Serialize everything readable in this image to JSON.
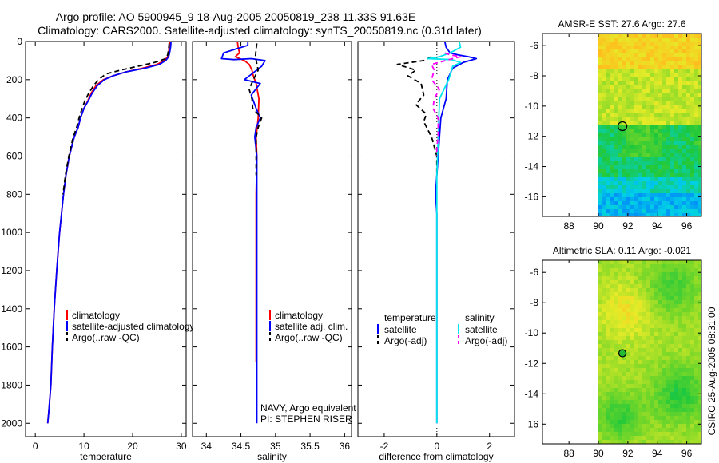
{
  "header": {
    "title_line1": "Argo profile: AO 5900945_9 18-Aug-2005 20050819_238 11.33S 91.63E",
    "title_line2": "Climatology: CARS2000. Satellite-adjusted climatology: synTS_20050819.nc (0.31d later)"
  },
  "side_caption": "CSIRO 25-Aug-2005 08:31:00",
  "colors": {
    "climatology": "#ff0000",
    "satellite": "#0000ff",
    "argo": "#000000",
    "sal_satellite": "#00e5ee",
    "sal_argo": "#ff00ff"
  },
  "chart_data": [
    {
      "type": "line",
      "panel": "temperature",
      "xlabel": "temperature",
      "xlim": [
        -2,
        31
      ],
      "ylim": [
        0,
        2070
      ],
      "xticks": [
        0,
        10,
        20,
        30
      ],
      "yticks": [
        0,
        200,
        400,
        600,
        800,
        1000,
        1200,
        1400,
        1600,
        1800,
        2000
      ],
      "y_reversed": true,
      "legend": [
        "climatology",
        "satellite-adjusted climatology",
        "Argo(..raw -QC)"
      ],
      "series": [
        {
          "name": "climatology",
          "color": "#ff0000",
          "style": "solid",
          "x": [
            27.6,
            27.5,
            27.4,
            27.2,
            26.5,
            25.0,
            22.0,
            18.5,
            16.0,
            14.0,
            12.5,
            11.5,
            10.8,
            10.0,
            9.3,
            8.8,
            8.0,
            7.0,
            6.3,
            5.8,
            5.0,
            4.4,
            3.9,
            3.5,
            3.2,
            2.9,
            2.7,
            2.55
          ],
          "y": [
            0,
            30,
            60,
            80,
            100,
            120,
            140,
            160,
            180,
            200,
            230,
            270,
            310,
            350,
            400,
            450,
            500,
            600,
            700,
            800,
            1000,
            1200,
            1400,
            1600,
            1800,
            1900,
            1960,
            2000
          ]
        },
        {
          "name": "satellite-adjusted climatology",
          "color": "#0000ff",
          "style": "solid",
          "x": [
            27.9,
            27.8,
            27.6,
            27.4,
            26.8,
            25.5,
            22.5,
            18.5,
            16.0,
            14.2,
            12.8,
            11.7,
            10.9,
            10.0,
            9.3,
            8.8,
            8.0,
            7.0,
            6.3,
            5.8,
            5.0,
            4.4,
            3.9,
            3.5,
            3.2,
            2.9,
            2.7,
            2.55
          ],
          "y": [
            0,
            30,
            60,
            80,
            100,
            120,
            140,
            160,
            180,
            200,
            230,
            270,
            310,
            350,
            400,
            450,
            500,
            600,
            700,
            800,
            1000,
            1200,
            1400,
            1600,
            1800,
            1900,
            1960,
            2000
          ]
        },
        {
          "name": "Argo(..raw -QC)",
          "color": "#000000",
          "style": "dashed",
          "x": [
            27.5,
            27.4,
            27.2,
            26.8,
            24.5,
            21.0,
            17.5,
            14.5,
            13.0,
            12.0,
            11.0,
            10.2,
            9.5,
            9.0,
            8.5,
            7.8,
            6.9,
            6.2,
            5.7
          ],
          "y": [
            10,
            40,
            70,
            90,
            110,
            130,
            150,
            170,
            200,
            230,
            270,
            310,
            360,
            400,
            450,
            500,
            600,
            700,
            800
          ]
        }
      ]
    },
    {
      "type": "line",
      "panel": "salinity",
      "xlabel": "salinity",
      "xlim": [
        33.8,
        36.1
      ],
      "ylim": [
        0,
        2070
      ],
      "xticks": [
        34,
        34.5,
        35,
        35.5,
        36
      ],
      "xticklabels": [
        "34",
        "34.5",
        "35",
        "35.5",
        "36"
      ],
      "y_reversed": true,
      "legend": [
        "climatology",
        "satellite adj. clim.",
        "Argo(..raw -QC)"
      ],
      "annotations": [
        "NAVY, Argo equivalent",
        "PI: STEPHEN RISER"
      ],
      "series": [
        {
          "name": "climatology",
          "color": "#ff0000",
          "style": "solid",
          "x": [
            34.45,
            34.46,
            34.48,
            34.42,
            34.55,
            34.62,
            34.66,
            34.68,
            34.72,
            34.76,
            34.75,
            34.72,
            34.73,
            34.72,
            34.72,
            34.72,
            34.72,
            34.72,
            34.72,
            34.72
          ],
          "y": [
            0,
            30,
            60,
            80,
            100,
            120,
            150,
            180,
            220,
            300,
            400,
            500,
            600,
            800,
            1000,
            1200,
            1400,
            1600,
            1680,
            1680
          ]
        },
        {
          "name": "satellite adj. clim.",
          "color": "#0000ff",
          "style": "solid",
          "x": [
            34.6,
            34.6,
            34.42,
            34.25,
            34.22,
            34.4,
            34.65,
            34.85,
            34.8,
            34.55,
            34.78,
            34.65,
            34.72,
            34.78,
            34.72,
            34.7,
            34.73,
            34.73,
            34.73,
            34.73,
            34.73,
            34.73,
            34.73
          ],
          "y": [
            0,
            20,
            40,
            60,
            90,
            95,
            90,
            100,
            130,
            200,
            220,
            280,
            350,
            400,
            450,
            500,
            600,
            800,
            1000,
            1200,
            1500,
            1800,
            2000
          ]
        },
        {
          "name": "Argo(..raw -QC)",
          "color": "#000000",
          "style": "dashed",
          "x": [
            34.73,
            34.72,
            34.71,
            34.75,
            34.68,
            34.62,
            34.66,
            34.67,
            34.8,
            34.75,
            34.72,
            34.72,
            34.72
          ],
          "y": [
            10,
            40,
            80,
            150,
            200,
            250,
            300,
            350,
            400,
            450,
            500,
            600,
            700
          ]
        }
      ]
    },
    {
      "type": "line",
      "panel": "difference",
      "xlabel": "difference from climatology",
      "xlim": [
        -3,
        2.95
      ],
      "ylim": [
        0,
        2070
      ],
      "xticks": [
        -2,
        0,
        2
      ],
      "y_reversed": true,
      "legend_columns": [
        "temperature",
        "salinity"
      ],
      "legend": [
        "satellite",
        "Argo(-adj)",
        "satellite",
        "Argo(-adj)"
      ],
      "series": [
        {
          "name": "temperature satellite",
          "color": "#0000ff",
          "style": "solid",
          "x": [
            0.3,
            0.35,
            0.5,
            0.8,
            1.2,
            1.5,
            1.0,
            0.6,
            0.4,
            0.35,
            0.15,
            0.1,
            0.05,
            0.0,
            -0.05,
            0.0,
            0.0,
            0.0,
            0.0,
            0.0
          ],
          "y": [
            0,
            30,
            60,
            70,
            80,
            90,
            110,
            140,
            200,
            300,
            400,
            500,
            600,
            700,
            800,
            900,
            1200,
            1500,
            1800,
            2000
          ]
        },
        {
          "name": "temperature Argo(-adj)",
          "color": "#000000",
          "style": "dashed",
          "x": [
            -0.2,
            -0.5,
            -1.5,
            -0.8,
            -1.1,
            -0.6,
            -0.5,
            -0.8,
            -0.4,
            -0.5,
            -0.2,
            -0.1,
            0.0,
            0.0
          ],
          "y": [
            80,
            100,
            120,
            150,
            180,
            220,
            280,
            330,
            380,
            420,
            500,
            550,
            600,
            700
          ]
        },
        {
          "name": "salinity satellite",
          "color": "#00e5ee",
          "style": "solid",
          "x": [
            0.85,
            0.9,
            0.5,
            0.1,
            -0.35,
            0.55,
            0.9,
            0.6,
            0.45,
            0.1,
            0.05,
            0.0,
            0.0,
            0.0,
            0.0,
            0.0
          ],
          "y": [
            0,
            30,
            60,
            80,
            90,
            95,
            110,
            130,
            200,
            300,
            500,
            700,
            900,
            1200,
            1600,
            2000
          ]
        },
        {
          "name": "salinity Argo(-adj)",
          "color": "#ff00ff",
          "style": "dashed",
          "x": [
            0.3,
            0.5,
            0.9,
            0.6,
            -0.2,
            -0.1,
            -0.2,
            0.1,
            -0.1,
            -0.15,
            0.05,
            0.05,
            0.0,
            0.0
          ],
          "y": [
            60,
            70,
            80,
            90,
            120,
            150,
            200,
            250,
            300,
            350,
            400,
            500,
            550,
            600
          ]
        }
      ]
    },
    {
      "type": "heatmap",
      "panel": "AMSR-E SST",
      "title": "AMSR-E SST: 27.6 Argo: 27.6",
      "xlim": [
        86.2,
        97.0
      ],
      "ylim": [
        -17.3,
        -5.2
      ],
      "xticks": [
        88,
        90,
        92,
        94,
        96
      ],
      "yticks": [
        -6,
        -8,
        -10,
        -12,
        -14,
        -16
      ],
      "xticklabels": [
        "88",
        "90",
        "92",
        "94",
        "96"
      ],
      "yticklabels": [
        "-6",
        "-8",
        "-10",
        "-12",
        "-14",
        "-16"
      ],
      "data_extent_lon": [
        90,
        97
      ],
      "marker": {
        "lon": 91.63,
        "lat": -11.33,
        "style": "open circle"
      }
    },
    {
      "type": "heatmap",
      "panel": "Altimetric SLA",
      "title": "Altimetric SLA: 0.11 Argo: -0.021",
      "xlim": [
        86.2,
        97.0
      ],
      "ylim": [
        -17.3,
        -5.2
      ],
      "xticks": [
        88,
        90,
        92,
        94,
        96
      ],
      "yticks": [
        -6,
        -8,
        -10,
        -12,
        -14,
        -16
      ],
      "xticklabels": [
        "88",
        "90",
        "92",
        "94",
        "96"
      ],
      "yticklabels": [
        "-6",
        "-8",
        "-10",
        "-12",
        "-14",
        "-16"
      ],
      "data_extent_lon": [
        90,
        97
      ],
      "marker": {
        "lon": 91.63,
        "lat": -11.33,
        "style": "filled circle"
      }
    }
  ]
}
